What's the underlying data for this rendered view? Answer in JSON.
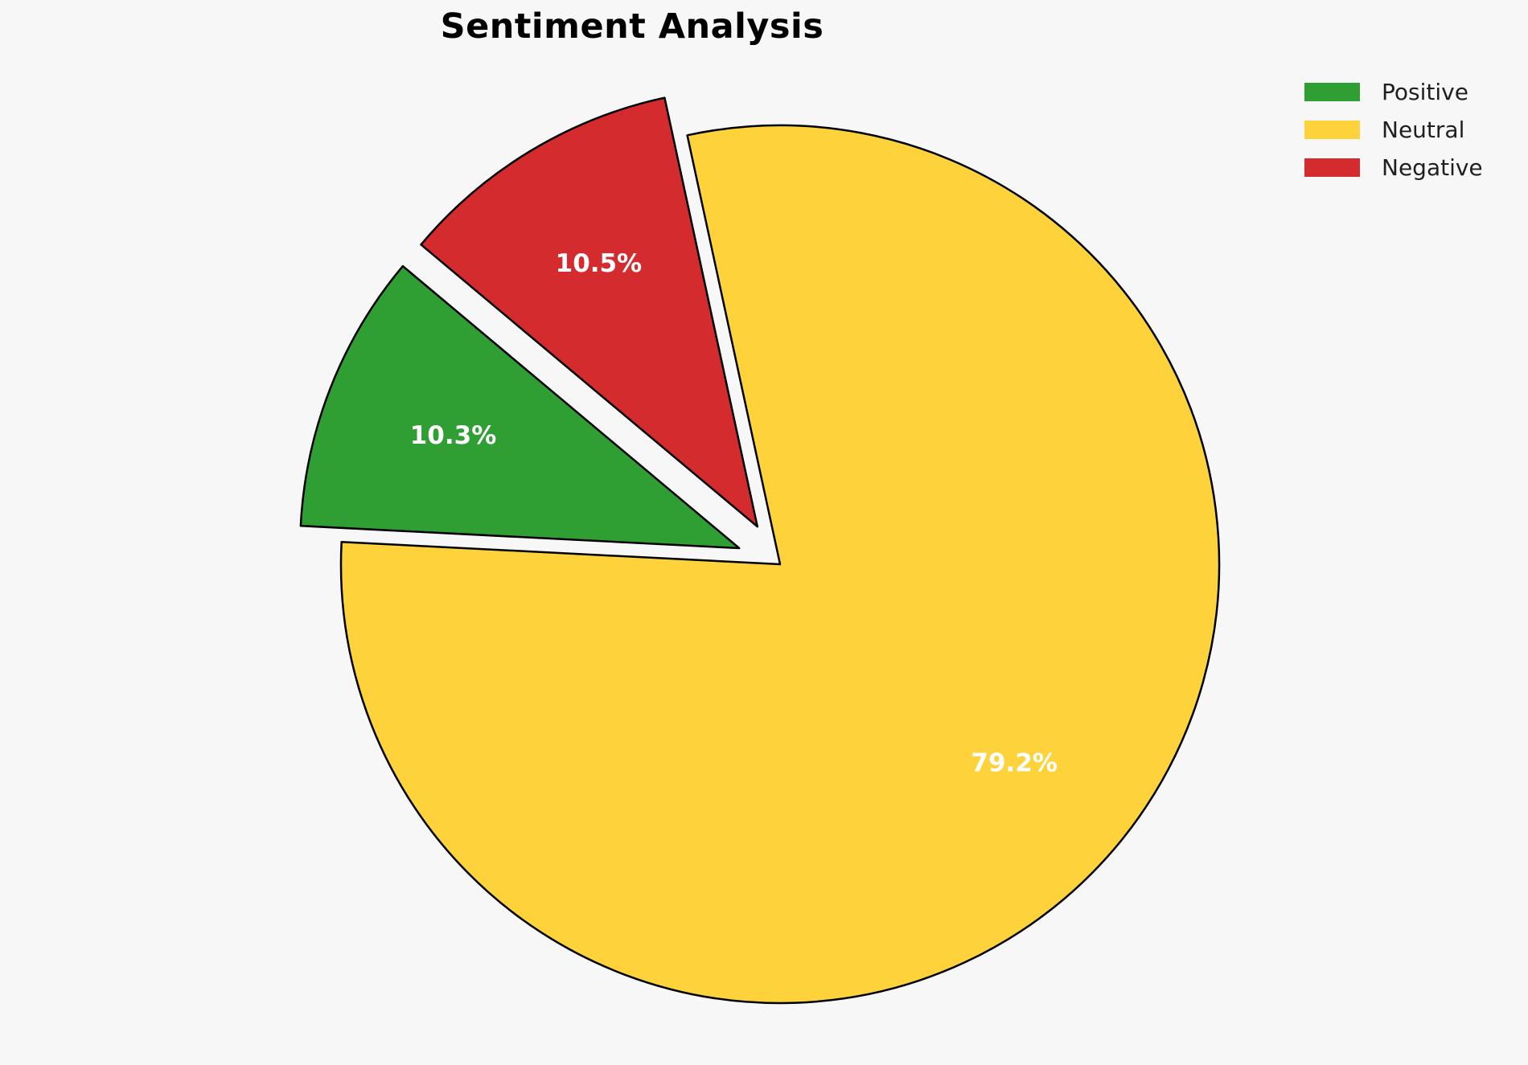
{
  "page": {
    "background_color": "#f7f7f7"
  },
  "header": {
    "title": "Sentiment Analysis"
  },
  "legend": {
    "position": "upper-right",
    "items": [
      {
        "label": "Positive"
      },
      {
        "label": "Neutral"
      },
      {
        "label": "Negative"
      }
    ]
  },
  "chart_data": {
    "type": "pie",
    "title": "Sentiment Analysis",
    "categories": [
      "Positive",
      "Neutral",
      "Negative"
    ],
    "values": [
      10.3,
      79.2,
      10.5
    ],
    "slice_labels": [
      "10.3%",
      "79.2%",
      "10.5%"
    ],
    "colors": [
      "#2f9e33",
      "#fdd23a",
      "#d32b2e"
    ],
    "start_angle_deg": 140,
    "direction": "counterclockwise",
    "explode": [
      0.1,
      0,
      0.1
    ],
    "edge_color": "#000000",
    "slice_label_color": "#ffffff",
    "legend_position": "upper right",
    "legend_entries": [
      "Positive",
      "Neutral",
      "Negative"
    ]
  }
}
